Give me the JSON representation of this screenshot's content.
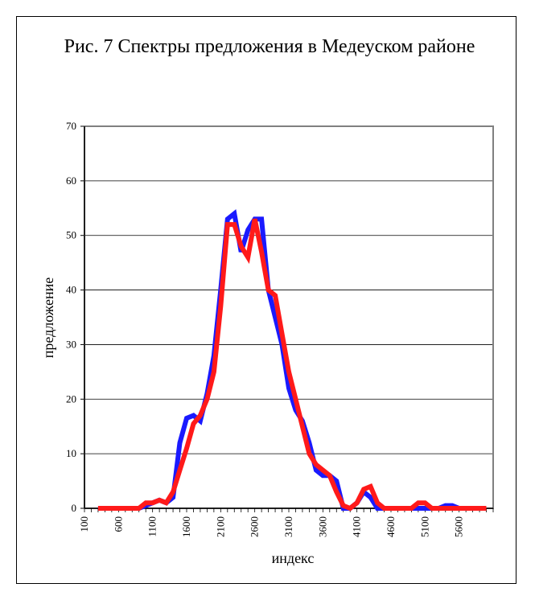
{
  "chart_data": {
    "type": "line",
    "title": "Рис. 7 Спектры предложения в Медеуском районе",
    "xlabel": "индекс",
    "ylabel": "предложение",
    "ylim": [
      0,
      70
    ],
    "yticks": [
      0,
      10,
      20,
      30,
      40,
      50,
      60,
      70
    ],
    "xticks": [
      "100",
      "600",
      "1100",
      "1600",
      "2100",
      "2600",
      "3100",
      "3600",
      "4100",
      "4600",
      "5100",
      "5600"
    ],
    "xlim": [
      100,
      6100
    ],
    "grid": "horizontal",
    "series": [
      {
        "color": "#1a1aff",
        "x": [
          300,
          400,
          500,
          600,
          700,
          800,
          900,
          1000,
          1100,
          1200,
          1300,
          1400,
          1500,
          1600,
          1700,
          1800,
          1900,
          2000,
          2100,
          2200,
          2300,
          2400,
          2500,
          2600,
          2700,
          2800,
          2900,
          3000,
          3100,
          3200,
          3300,
          3400,
          3500,
          3600,
          3700,
          3800,
          3900,
          4000,
          4100,
          4200,
          4300,
          4400,
          4500,
          4600,
          4700,
          4800,
          4900,
          5000,
          5100,
          5200,
          5300,
          5400,
          5500,
          5600,
          5700,
          5800,
          5900,
          6000
        ],
        "values": [
          0,
          0,
          0,
          0,
          0,
          0,
          0,
          0.5,
          1,
          1.5,
          1,
          2,
          12,
          16.5,
          17,
          16,
          21,
          28,
          40,
          53,
          54,
          47,
          51,
          53,
          53,
          40,
          35,
          30,
          22,
          18,
          16,
          12,
          7,
          6,
          6,
          5,
          0,
          0,
          1,
          3,
          2,
          0,
          0,
          0,
          0,
          0,
          0,
          0,
          0,
          0,
          0,
          0.5,
          0.5,
          0,
          0,
          0,
          0,
          0
        ]
      },
      {
        "color": "#ff1a1a",
        "x": [
          300,
          400,
          500,
          600,
          700,
          800,
          900,
          1000,
          1100,
          1200,
          1300,
          1400,
          1500,
          1600,
          1700,
          1800,
          1900,
          2000,
          2100,
          2200,
          2300,
          2400,
          2500,
          2600,
          2700,
          2800,
          2900,
          3000,
          3100,
          3200,
          3300,
          3400,
          3500,
          3600,
          3700,
          3800,
          3900,
          4000,
          4100,
          4200,
          4300,
          4400,
          4500,
          4600,
          4700,
          4800,
          4900,
          5000,
          5100,
          5200,
          5300,
          5400,
          5500,
          5600,
          5700,
          5800,
          5900,
          6000
        ],
        "values": [
          0,
          0,
          0,
          0,
          0,
          0,
          0,
          1,
          1,
          1.5,
          1,
          3,
          7,
          11,
          15.5,
          17,
          20,
          25,
          37,
          52,
          52,
          48,
          46,
          53,
          47,
          40,
          39,
          32,
          25,
          20,
          15,
          10,
          8,
          7,
          6,
          3,
          0.5,
          0,
          1,
          3.5,
          4,
          1,
          0,
          0,
          0,
          0,
          0,
          1,
          1,
          0,
          0,
          0,
          0,
          0,
          0,
          0,
          0,
          0
        ]
      }
    ]
  }
}
